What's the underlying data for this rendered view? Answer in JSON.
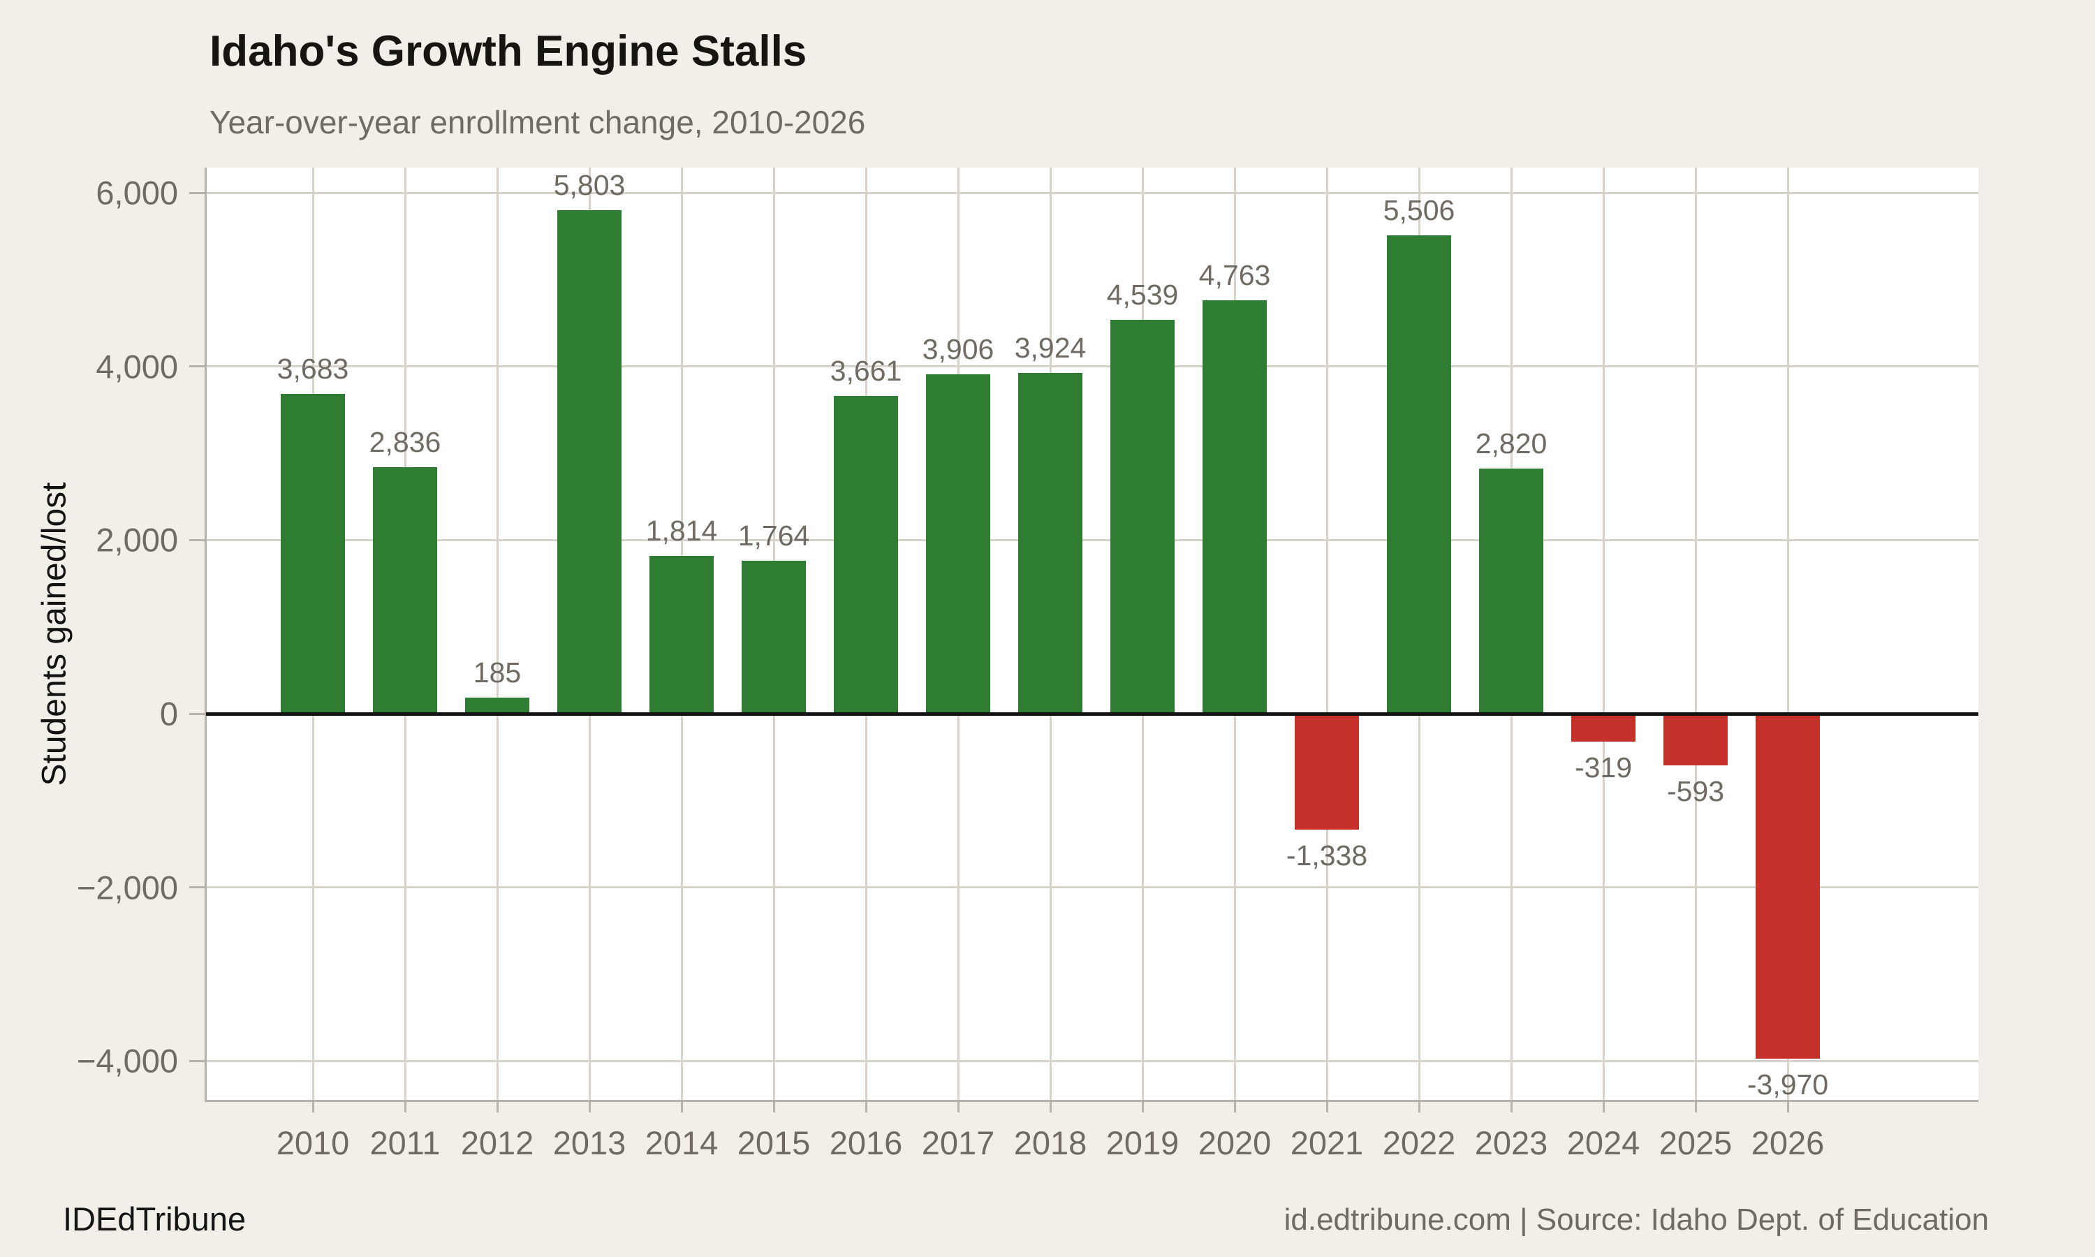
{
  "header": {
    "title": "Idaho's Growth Engine Stalls",
    "subtitle": "Year-over-year enrollment change, 2010-2026"
  },
  "footer": {
    "brand": "IDEdTribune",
    "source": "id.edtribune.com | Source: Idaho Dept. of Education"
  },
  "chart_data": {
    "type": "bar",
    "title": "Idaho's Growth Engine Stalls",
    "subtitle": "Year-over-year enrollment change, 2010-2026",
    "xlabel": "",
    "ylabel": "Students gained/lost",
    "categories": [
      "2010",
      "2011",
      "2012",
      "2013",
      "2014",
      "2015",
      "2016",
      "2017",
      "2018",
      "2019",
      "2020",
      "2021",
      "2022",
      "2023",
      "2024",
      "2025",
      "2026"
    ],
    "values": [
      3683,
      2836,
      185,
      5803,
      1814,
      1764,
      3661,
      3906,
      3924,
      4539,
      4763,
      -1338,
      5506,
      2820,
      -319,
      -593,
      -3970
    ],
    "bar_labels": [
      "3,683",
      "2,836",
      "185",
      "5,803",
      "1,814",
      "1,764",
      "3,661",
      "3,906",
      "3,924",
      "4,539",
      "4,763",
      "-1,338",
      "5,506",
      "2,820",
      "-319",
      "-593",
      "-3,970"
    ],
    "yticks": [
      {
        "value": 6000,
        "label": "6,000"
      },
      {
        "value": 4000,
        "label": "4,000"
      },
      {
        "value": 2000,
        "label": "2,000"
      },
      {
        "value": 0,
        "label": "0"
      },
      {
        "value": -2000,
        "label": "−2,000"
      },
      {
        "value": -4000,
        "label": "−4,000"
      }
    ],
    "ylim": [
      -4464,
      6290
    ],
    "zero_line": true,
    "grid": true,
    "legend": "none",
    "colors": {
      "positive": "#2e7d32",
      "negative": "#c5302b",
      "background": "#f2efe9",
      "plot_background": "#ffffff",
      "gridline": "#d8d3ca",
      "axis_line": "#b7b1a7",
      "zero_line": "#131313",
      "label_text": "#6f6a62",
      "title_text": "#171512"
    }
  }
}
